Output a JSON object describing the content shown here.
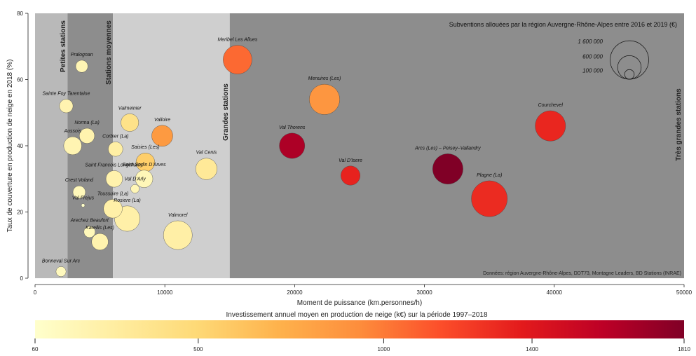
{
  "chart_data": {
    "type": "scatter",
    "xlabel": "Moment de puissance (km.personnes/h)",
    "ylabel": "Taux de couverture en production de neige en 2018 (%)",
    "xlim": [
      0,
      50000
    ],
    "ylim": [
      0,
      80
    ],
    "x_ticks": [
      "0",
      "10000",
      "20000",
      "30000",
      "40000",
      "50000"
    ],
    "y_ticks": [
      "0",
      "20",
      "40",
      "60",
      "80"
    ],
    "zones": [
      {
        "name": "Petites stations",
        "x_from": 0,
        "x_to": 2500,
        "color": "#b9b9b9"
      },
      {
        "name": "Stations moyennes",
        "x_from": 2500,
        "x_to": 6000,
        "color": "#8d8d8d"
      },
      {
        "name": "Grandes stations",
        "x_from": 6000,
        "x_to": 15000,
        "color": "#cfcfcf"
      },
      {
        "name": "Très grandes stations",
        "x_from": 15000,
        "x_to": 50000,
        "color": "#8d8d8d"
      }
    ],
    "size_legend": {
      "title": "Subventions allouées par la région Auvergne-Rhône-Alpes entre 2016 et 2019 (€)",
      "values": [
        1600000,
        600000,
        100000
      ],
      "labels": [
        "1 600 000",
        "600 000",
        "100 000"
      ]
    },
    "color_legend": {
      "title": "Investissement annuel moyen en production de neige (k€) sur la période 1997–2018",
      "min": 60,
      "max": 1810,
      "ticks": [
        "60",
        "500",
        "1000",
        "1400",
        "1810"
      ],
      "tick_values": [
        60,
        500,
        1000,
        1400,
        1810
      ],
      "colors": [
        "#ffffcc",
        "#ffeda0",
        "#fed976",
        "#feb24c",
        "#fd8d3c",
        "#fc4e2a",
        "#e31a1c",
        "#bd0026",
        "#800026"
      ]
    },
    "source_note": "Données: région Auvergne-Rhône-Alpes, DDT73, Montagne Leaders, BD Stations (INRAE)",
    "points": [
      {
        "name": "Pralognan",
        "x": 3600,
        "y": 64,
        "subsidy": 160000,
        "invest": 180
      },
      {
        "name": "Sainte Foy Tarentaise",
        "x": 2400,
        "y": 52,
        "subsidy": 200000,
        "invest": 200
      },
      {
        "name": "Aussois",
        "x": 2900,
        "y": 40,
        "subsidy": 350000,
        "invest": 190
      },
      {
        "name": "Norma (La)",
        "x": 4000,
        "y": 43,
        "subsidy": 250000,
        "invest": 210
      },
      {
        "name": "Corbier (La)",
        "x": 6200,
        "y": 39,
        "subsidy": 230000,
        "invest": 260
      },
      {
        "name": "Valmeinier",
        "x": 7300,
        "y": 47,
        "subsidy": 340000,
        "invest": 400
      },
      {
        "name": "Valloire",
        "x": 9800,
        "y": 43,
        "subsidy": 480000,
        "invest": 860
      },
      {
        "name": "Saint Francois Longchamp",
        "x": 6100,
        "y": 30,
        "subsidy": 300000,
        "invest": 220
      },
      {
        "name": "Saisies (Les)",
        "x": 8500,
        "y": 35,
        "subsidy": 380000,
        "invest": 560
      },
      {
        "name": "Crest Voland",
        "x": 3400,
        "y": 26,
        "subsidy": 170000,
        "invest": 150
      },
      {
        "name": "Val D'Arly",
        "x": 7700,
        "y": 27,
        "subsidy": 80000,
        "invest": 170
      },
      {
        "name": "Toussuire (La)",
        "x": 6000,
        "y": 21,
        "subsidy": 380000,
        "invest": 240
      },
      {
        "name": "Saint Sorlin D'Arves",
        "x": 8400,
        "y": 30,
        "subsidy": 330000,
        "invest": 160
      },
      {
        "name": "Val Frejus",
        "x": 3700,
        "y": 22,
        "subsidy": 8000,
        "invest": 70
      },
      {
        "name": "Rosiere (La)",
        "x": 7100,
        "y": 18,
        "subsidy": 700000,
        "invest": 240
      },
      {
        "name": "Arechez Beaufort",
        "x": 4200,
        "y": 14,
        "subsidy": 140000,
        "invest": 150
      },
      {
        "name": "Karellis (Les)",
        "x": 5000,
        "y": 11,
        "subsidy": 300000,
        "invest": 210
      },
      {
        "name": "Bonneval Sur Arc",
        "x": 2000,
        "y": 2,
        "subsidy": 110000,
        "invest": 130
      },
      {
        "name": "Valmorel",
        "x": 11000,
        "y": 13,
        "subsidy": 900000,
        "invest": 250
      },
      {
        "name": "Val Cenis",
        "x": 13200,
        "y": 33,
        "subsidy": 500000,
        "invest": 320
      },
      {
        "name": "Meribel Les Allues",
        "x": 15600,
        "y": 66,
        "subsidy": 900000,
        "invest": 1060
      },
      {
        "name": "Menuires (Les)",
        "x": 22300,
        "y": 54,
        "subsidy": 1000000,
        "invest": 880
      },
      {
        "name": "Val Thorens",
        "x": 19800,
        "y": 40,
        "subsidy": 700000,
        "invest": 1650
      },
      {
        "name": "Val D'Isere",
        "x": 24300,
        "y": 31,
        "subsidy": 400000,
        "invest": 1340
      },
      {
        "name": "Arcs (Les) – Peisey–Vallandry",
        "x": 31800,
        "y": 33,
        "subsidy": 1000000,
        "invest": 1810
      },
      {
        "name": "Plagne (La)",
        "x": 35000,
        "y": 24,
        "subsidy": 1400000,
        "invest": 1300
      },
      {
        "name": "Courchevel",
        "x": 39700,
        "y": 46,
        "subsidy": 1000000,
        "invest": 1320
      }
    ]
  }
}
